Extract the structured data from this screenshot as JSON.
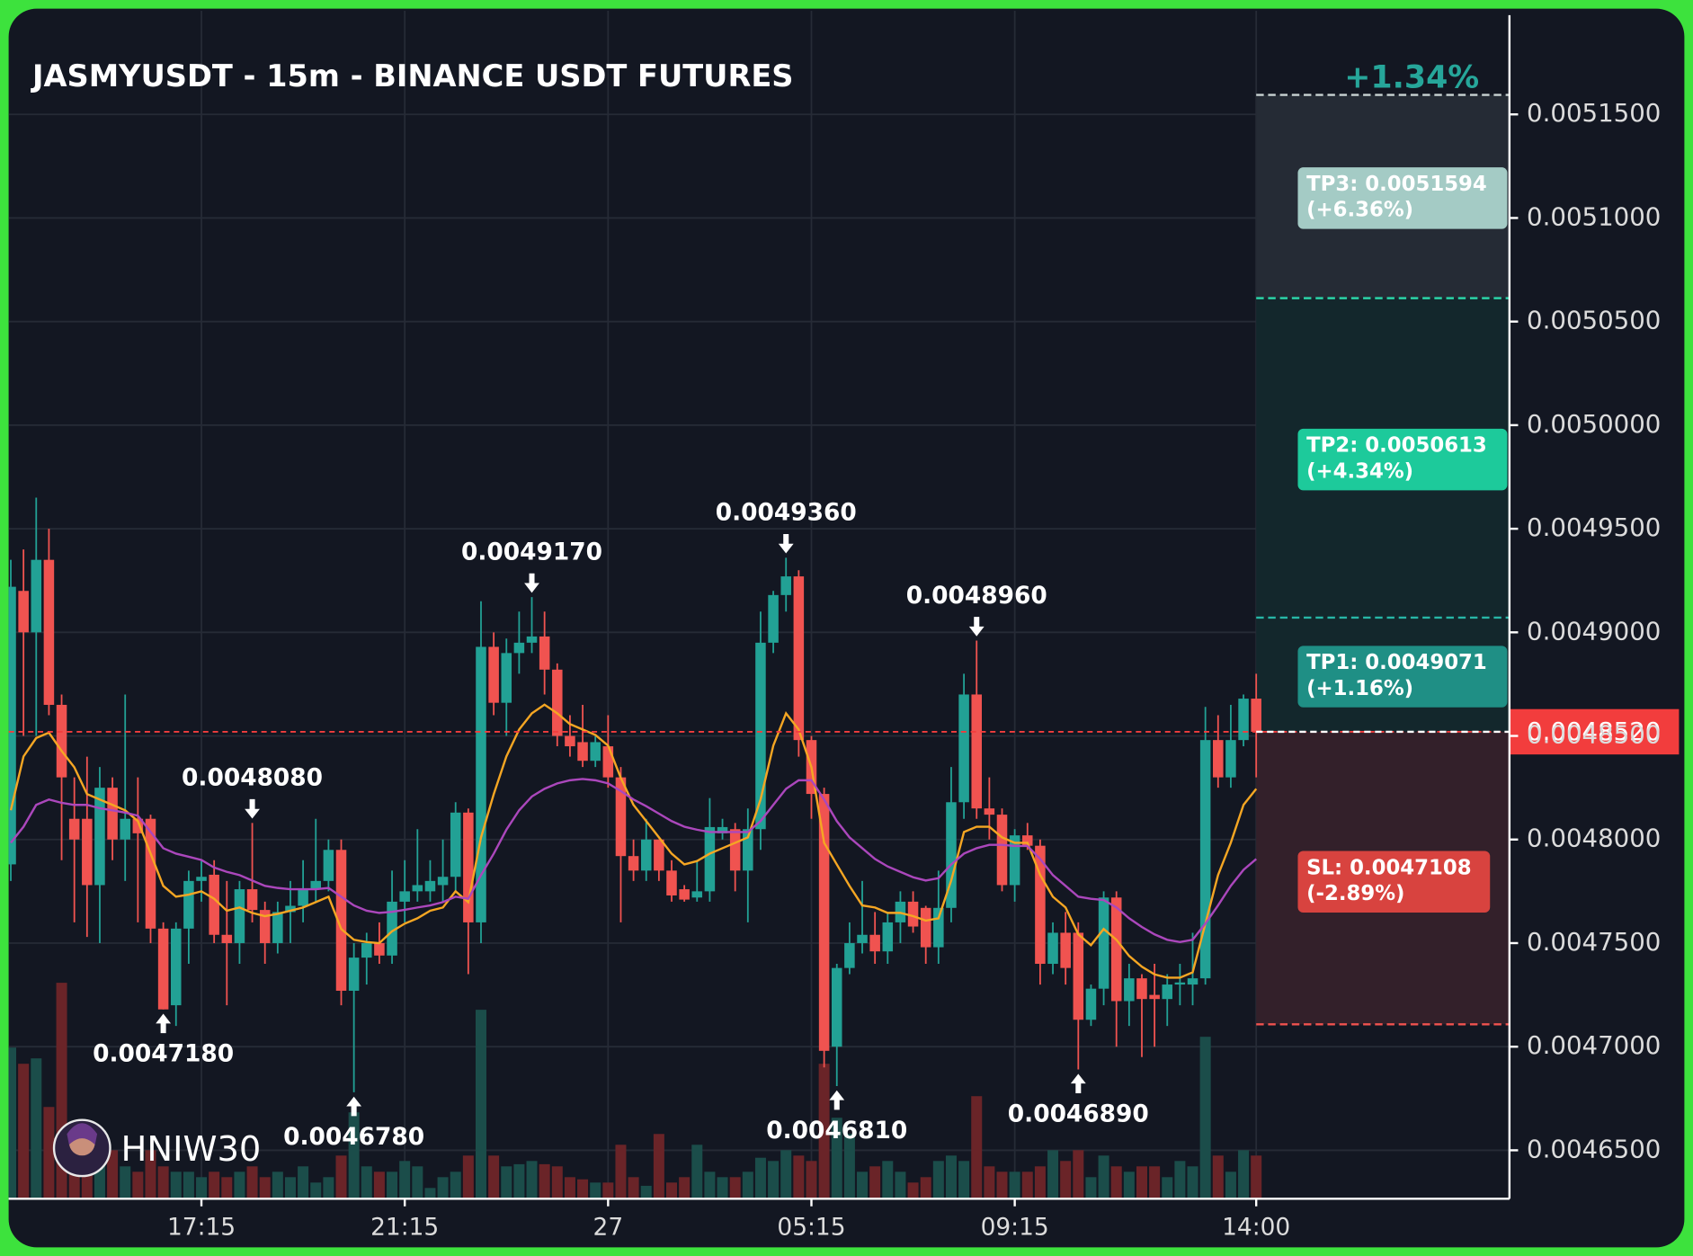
{
  "chart_data": {
    "type": "candlestick",
    "title": "JASMYUSDT - 15m - BINANCE USDT FUTURES",
    "watermark": "HNIW30",
    "categories": [
      null,
      null,
      null,
      null,
      null,
      null,
      null,
      null,
      null,
      null,
      null,
      null,
      null,
      null,
      null,
      "17:15",
      null,
      null,
      null,
      null,
      null,
      null,
      null,
      null,
      null,
      null,
      null,
      null,
      null,
      null,
      null,
      "21:15",
      null,
      null,
      null,
      null,
      null,
      null,
      null,
      null,
      null,
      null,
      null,
      null,
      null,
      null,
      null,
      "27",
      null,
      null,
      null,
      null,
      null,
      null,
      null,
      null,
      null,
      null,
      null,
      null,
      null,
      null,
      null,
      "05:15",
      null,
      null,
      null,
      null,
      null,
      null,
      null,
      null,
      null,
      null,
      null,
      null,
      null,
      null,
      null,
      "09:15",
      null,
      null,
      null,
      null,
      null,
      null,
      null,
      null,
      null,
      null,
      null,
      null,
      null,
      null,
      null,
      null,
      null,
      null,
      "14:00"
    ],
    "open": [
      0.004788,
      0.00492,
      0.0049,
      0.004935,
      0.004865,
      0.00481,
      0.00481,
      0.004778,
      0.004825,
      0.0048,
      0.00481,
      0.00481,
      0.004757,
      0.00472,
      0.004757,
      0.00478,
      0.004783,
      0.004754,
      0.00475,
      0.004776,
      0.004766,
      0.00475,
      0.004765,
      0.004768,
      0.004776,
      0.00478,
      0.004795,
      0.004727,
      0.004743,
      0.00475,
      0.004744,
      0.00477,
      0.004775,
      0.004775,
      0.004778,
      0.004782,
      0.004813,
      0.00476,
      0.004893,
      0.004866,
      0.00489,
      0.004895,
      0.004898,
      0.004882,
      0.00485,
      0.004847,
      0.004838,
      0.004845,
      0.00483,
      0.004792,
      0.004785,
      0.0048,
      0.004785,
      0.004776,
      0.004772,
      0.004775,
      0.004803,
      0.004805,
      0.004785,
      0.004805,
      0.004895,
      0.004918,
      0.004927,
      0.004848,
      0.004822,
      0.0047,
      0.004738,
      0.00475,
      0.004754,
      0.004746,
      0.00476,
      0.00477,
      0.004767,
      0.004748,
      0.004767,
      0.004818,
      0.00487,
      0.004815,
      0.004812,
      0.004778,
      0.004802,
      0.004797,
      0.00474,
      0.004755,
      0.004755,
      0.004713,
      0.004728,
      0.004772,
      0.004722,
      0.004733,
      0.004725,
      0.004723,
      0.00473,
      0.00473,
      0.004733,
      0.004848,
      0.00483,
      0.004848,
      0.004868
    ],
    "high": [
      0.004935,
      0.00494,
      0.004965,
      0.00495,
      0.00487,
      0.00483,
      0.00484,
      0.004835,
      0.00483,
      0.00487,
      0.00483,
      0.004812,
      0.00476,
      0.00476,
      0.004785,
      0.00479,
      0.00479,
      0.00478,
      0.00478,
      0.004808,
      0.00477,
      0.00477,
      0.00478,
      0.00479,
      0.00481,
      0.0048,
      0.0048,
      0.00475,
      0.004755,
      0.00476,
      0.004785,
      0.00479,
      0.004805,
      0.00479,
      0.0048,
      0.004818,
      0.004815,
      0.004915,
      0.0049,
      0.004897,
      0.00491,
      0.004917,
      0.00491,
      0.004885,
      0.00486,
      0.004865,
      0.00485,
      0.00486,
      0.004835,
      0.0048,
      0.00481,
      0.0048,
      0.00479,
      0.004778,
      0.00479,
      0.00482,
      0.00481,
      0.004808,
      0.004815,
      0.00491,
      0.00492,
      0.004936,
      0.00493,
      0.00485,
      0.004825,
      0.00474,
      0.00476,
      0.00478,
      0.004765,
      0.004765,
      0.004775,
      0.004775,
      0.004768,
      0.004785,
      0.004835,
      0.00488,
      0.004896,
      0.00483,
      0.004815,
      0.004805,
      0.004808,
      0.0048,
      0.00476,
      0.004765,
      0.00476,
      0.00473,
      0.004775,
      0.004775,
      0.00474,
      0.004735,
      0.00474,
      0.004735,
      0.00474,
      0.004755,
      0.004864,
      0.00486,
      0.004865,
      0.00487,
      0.00488
    ],
    "low": [
      0.00478,
      0.00485,
      0.00485,
      0.00486,
      0.00479,
      0.00476,
      0.004753,
      0.00475,
      0.00479,
      0.00478,
      0.00476,
      0.00475,
      0.004718,
      0.00471,
      0.00474,
      0.00477,
      0.00475,
      0.00472,
      0.00474,
      0.00476,
      0.00474,
      0.004745,
      0.00475,
      0.00476,
      0.00477,
      0.004775,
      0.00472,
      0.004678,
      0.00473,
      0.00474,
      0.00474,
      0.00476,
      0.00477,
      0.00477,
      0.00477,
      0.004775,
      0.004735,
      0.00475,
      0.00486,
      0.00485,
      0.00488,
      0.00489,
      0.00487,
      0.004845,
      0.00484,
      0.004835,
      0.004835,
      0.004825,
      0.00476,
      0.00478,
      0.00478,
      0.00478,
      0.00477,
      0.00477,
      0.00477,
      0.00477,
      0.0048,
      0.004775,
      0.00476,
      0.004795,
      0.00489,
      0.00491,
      0.00484,
      0.00481,
      0.00469,
      0.004681,
      0.004735,
      0.004745,
      0.00474,
      0.00474,
      0.00475,
      0.004755,
      0.00474,
      0.00474,
      0.00476,
      0.00481,
      0.00481,
      0.0048,
      0.004775,
      0.00477,
      0.004795,
      0.00473,
      0.004735,
      0.00473,
      0.004689,
      0.00471,
      0.00472,
      0.0047,
      0.00471,
      0.004695,
      0.0047,
      0.00471,
      0.00472,
      0.00472,
      0.00473,
      0.004825,
      0.004825,
      0.004845,
      0.00483
    ],
    "close": [
      0.004922,
      0.0049,
      0.004935,
      0.004865,
      0.00483,
      0.0048,
      0.004778,
      0.004825,
      0.0048,
      0.00481,
      0.004803,
      0.004757,
      0.004718,
      0.004757,
      0.00478,
      0.004782,
      0.004754,
      0.00475,
      0.004776,
      0.004766,
      0.00475,
      0.004765,
      0.004768,
      0.004776,
      0.00478,
      0.004795,
      0.004727,
      0.004743,
      0.00475,
      0.004744,
      0.00477,
      0.004775,
      0.004778,
      0.00478,
      0.004782,
      0.004813,
      0.00476,
      0.004893,
      0.004866,
      0.00489,
      0.004895,
      0.004898,
      0.004882,
      0.00485,
      0.004845,
      0.004838,
      0.004847,
      0.00483,
      0.004792,
      0.004785,
      0.0048,
      0.004785,
      0.004773,
      0.004771,
      0.004775,
      0.004806,
      0.004806,
      0.004785,
      0.004805,
      0.004895,
      0.004918,
      0.004927,
      0.004848,
      0.004822,
      0.004698,
      0.004738,
      0.00475,
      0.004754,
      0.004746,
      0.00476,
      0.00477,
      0.004758,
      0.004748,
      0.004767,
      0.004818,
      0.00487,
      0.004815,
      0.004812,
      0.004778,
      0.004802,
      0.004797,
      0.00474,
      0.004755,
      0.004738,
      0.004713,
      0.004728,
      0.004772,
      0.004722,
      0.004733,
      0.004723,
      0.004723,
      0.00473,
      0.004731,
      0.004733,
      0.004848,
      0.00483,
      0.004848,
      0.004868,
      0.004852
    ],
    "high_labels": [
      null,
      null,
      null,
      null,
      null,
      null,
      null,
      null,
      null,
      null,
      null,
      null,
      null,
      null,
      null,
      null,
      null,
      null,
      null,
      "0.0048080",
      null,
      null,
      null,
      null,
      null,
      null,
      null,
      null,
      null,
      null,
      null,
      null,
      null,
      null,
      null,
      null,
      null,
      null,
      null,
      null,
      null,
      "0.0049170",
      null,
      null,
      null,
      null,
      null,
      null,
      null,
      null,
      null,
      null,
      null,
      null,
      null,
      null,
      null,
      null,
      null,
      null,
      null,
      "0.0049360",
      null,
      null,
      null,
      null,
      null,
      null,
      null,
      null,
      null,
      null,
      null,
      null,
      null,
      null,
      "0.0048960",
      null,
      null,
      null,
      null,
      null,
      null,
      null,
      null,
      null,
      null,
      null,
      null,
      null,
      null,
      null,
      null,
      null,
      null,
      null,
      null,
      null,
      null
    ],
    "low_labels": [
      null,
      null,
      null,
      null,
      null,
      null,
      null,
      null,
      null,
      null,
      null,
      null,
      "0.0047180",
      null,
      null,
      null,
      null,
      null,
      null,
      null,
      null,
      null,
      null,
      null,
      null,
      null,
      null,
      "0.0046780",
      null,
      null,
      null,
      null,
      null,
      null,
      null,
      null,
      null,
      null,
      null,
      null,
      null,
      null,
      null,
      null,
      null,
      null,
      null,
      null,
      null,
      null,
      null,
      null,
      null,
      null,
      null,
      null,
      null,
      null,
      null,
      null,
      null,
      null,
      null,
      null,
      null,
      "0.0046810",
      null,
      null,
      null,
      null,
      null,
      null,
      null,
      null,
      null,
      null,
      null,
      null,
      null,
      null,
      null,
      null,
      null,
      null,
      "0.0046890",
      null,
      null,
      null,
      null,
      null,
      null,
      null,
      null,
      null,
      null,
      null,
      null,
      null,
      null
    ],
    "volume": [
      140,
      125,
      130,
      85,
      200,
      60,
      40,
      35,
      45,
      30,
      25,
      45,
      30,
      25,
      25,
      20,
      25,
      20,
      25,
      30,
      20,
      25,
      20,
      30,
      15,
      20,
      40,
      80,
      30,
      25,
      25,
      35,
      30,
      10,
      20,
      25,
      40,
      175,
      40,
      30,
      32,
      35,
      32,
      30,
      20,
      18,
      15,
      15,
      50,
      20,
      12,
      60,
      15,
      20,
      50,
      25,
      20,
      20,
      25,
      38,
      35,
      45,
      40,
      35,
      125,
      75,
      60,
      25,
      30,
      35,
      25,
      15,
      20,
      35,
      40,
      35,
      95,
      30,
      25,
      25,
      25,
      30,
      45,
      35,
      45,
      20,
      40,
      30,
      25,
      30,
      30,
      20,
      35,
      30,
      150,
      40,
      25,
      45,
      40
    ],
    "up_color": "#22a195",
    "down_color": "#f05350",
    "up_volume_color": "#1b4d4a",
    "down_volume_color": "#6a2428",
    "lines": [
      {
        "color": "#f5a623",
        "values": [
          0.0048141,
          0.0048401,
          0.004849,
          0.0048516,
          0.0048427,
          0.0048349,
          0.0048219,
          0.0048193,
          0.0048167,
          0.0048141,
          0.0048089,
          0.0047932,
          0.0047776,
          0.0047724,
          0.0047734,
          0.004775,
          0.0047714,
          0.0047656,
          0.0047672,
          0.0047646,
          0.004763,
          0.0047641,
          0.0047656,
          0.0047672,
          0.0047698,
          0.0047724,
          0.0047568,
          0.0047516,
          0.0047505,
          0.00475,
          0.0047557,
          0.0047594,
          0.004762,
          0.0047656,
          0.0047672,
          0.004775,
          0.0047698,
          0.004801,
          0.0048219,
          0.0048401,
          0.0048531,
          0.0048609,
          0.0048651,
          0.0048609,
          0.0048557,
          0.0048531,
          0.0048505,
          0.0048453,
          0.0048297,
          0.0048167,
          0.0048089,
          0.004801,
          0.0047932,
          0.004788,
          0.0047896,
          0.0047932,
          0.0047958,
          0.0047984,
          0.004801,
          0.0048193,
          0.0048453,
          0.0048609,
          0.0048531,
          0.0048349,
          0.0047984,
          0.004788,
          0.0047776,
          0.0047682,
          0.0047672,
          0.0047646,
          0.0047646,
          0.004763,
          0.0047609,
          0.004762,
          0.0047802,
          0.0048036,
          0.0048062,
          0.0048062,
          0.004801,
          0.0047984,
          0.0047984,
          0.0047828,
          0.0047724,
          0.0047672,
          0.0047542,
          0.004749,
          0.0047568,
          0.0047516,
          0.0047438,
          0.0047386,
          0.0047349,
          0.0047333,
          0.0047333,
          0.0047359,
          0.0047594,
          0.0047828,
          0.0047984,
          0.0048167,
          0.0048245
        ]
      },
      {
        "color": "#ab47bc",
        "values": [
          0.0047984,
          0.0048062,
          0.0048167,
          0.0048193,
          0.0048177,
          0.0048167,
          0.0048167,
          0.0048151,
          0.0048141,
          0.004813,
          0.0048115,
          0.0048036,
          0.0047958,
          0.0047932,
          0.0047917,
          0.0047901,
          0.0047865,
          0.0047844,
          0.0047828,
          0.0047802,
          0.0047776,
          0.0047766,
          0.004776,
          0.004776,
          0.004776,
          0.0047766,
          0.0047724,
          0.0047682,
          0.0047656,
          0.0047646,
          0.0047651,
          0.0047661,
          0.0047672,
          0.0047682,
          0.0047698,
          0.0047724,
          0.0047714,
          0.0047828,
          0.0047932,
          0.0048047,
          0.0048141,
          0.0048208,
          0.0048245,
          0.0048271,
          0.0048286,
          0.0048292,
          0.0048286,
          0.0048271,
          0.0048234,
          0.0048193,
          0.0048161,
          0.0048125,
          0.0048089,
          0.0048062,
          0.0048047,
          0.0048036,
          0.0048036,
          0.0048036,
          0.0048036,
          0.0048089,
          0.0048167,
          0.0048245,
          0.0048286,
          0.0048286,
          0.0048193,
          0.0048089,
          0.004801,
          0.0047958,
          0.0047906,
          0.004787,
          0.0047844,
          0.0047818,
          0.0047802,
          0.0047813,
          0.004788,
          0.0047932,
          0.0047958,
          0.0047974,
          0.0047974,
          0.0047969,
          0.0047969,
          0.0047906,
          0.0047828,
          0.0047776,
          0.0047724,
          0.0047714,
          0.0047708,
          0.0047672,
          0.004762,
          0.0047578,
          0.0047542,
          0.0047516,
          0.0047505,
          0.0047516,
          0.0047594,
          0.0047682,
          0.0047776,
          0.0047854,
          0.0047906
        ]
      }
    ],
    "last_price": {
      "value": 0.004852,
      "label": "0.0048520",
      "color": "#f23d3d"
    },
    "trade": {
      "change": "+1.34%",
      "entry": 0.004852,
      "targets": [
        {
          "price": 0.0051594,
          "label": "TP3: 0.0051594",
          "pct": "(+6.36%)",
          "color": "#a4cbc5",
          "line_color": "#c9d3d3"
        },
        {
          "price": 0.0050613,
          "label": "TP2: 0.0050613",
          "pct": "(+4.34%)",
          "color": "#1dca9b",
          "line_color": "#2bd3a7"
        },
        {
          "price": 0.0049071,
          "label": "TP1: 0.0049071",
          "pct": "(+1.16%)",
          "color": "#1f8f85",
          "line_color": "#27b6a6"
        }
      ],
      "stop": {
        "price": 0.0047108,
        "label": "SL: 0.0047108",
        "pct": "(-2.89%)",
        "color": "#d8433f",
        "line_color": "#f0524f"
      }
    },
    "ylim": [
      0.0046266,
      0.0052
    ],
    "yticks": [
      {
        "value": 0.00465,
        "label": "0.0046500"
      },
      {
        "value": 0.0047,
        "label": "0.0047000"
      },
      {
        "value": 0.00475,
        "label": "0.0047500"
      },
      {
        "value": 0.0048,
        "label": "0.0048000"
      },
      {
        "value": 0.00485,
        "label": "0.0048500"
      },
      {
        "value": 0.0049,
        "label": "0.0049000"
      },
      {
        "value": 0.00495,
        "label": "0.0049500"
      },
      {
        "value": 0.005,
        "label": "0.0050000"
      },
      {
        "value": 0.00505,
        "label": "0.0050500"
      },
      {
        "value": 0.0051,
        "label": "0.0051000"
      },
      {
        "value": 0.00515,
        "label": "0.0051500"
      }
    ],
    "grid": true
  }
}
